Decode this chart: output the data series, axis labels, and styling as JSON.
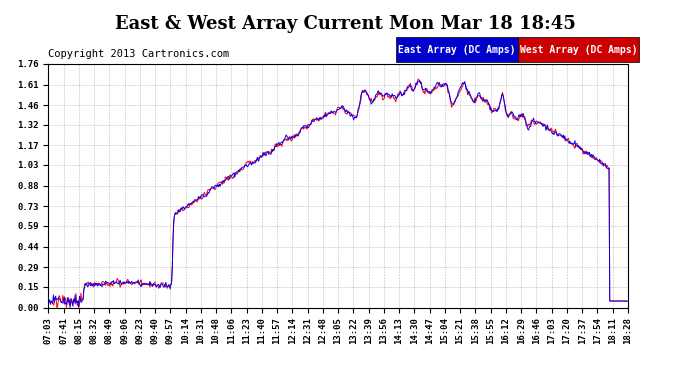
{
  "title": "East & West Array Current Mon Mar 18 18:45",
  "copyright": "Copyright 2013 Cartronics.com",
  "legend_east": "East Array (DC Amps)",
  "legend_west": "West Array (DC Amps)",
  "east_color": "#0000ff",
  "west_color": "#ff0000",
  "legend_east_bg": "#0000cc",
  "legend_west_bg": "#cc0000",
  "background_color": "#ffffff",
  "grid_color": "#aaaaaa",
  "ylim": [
    0.0,
    1.76
  ],
  "yticks": [
    0.0,
    0.15,
    0.29,
    0.44,
    0.59,
    0.73,
    0.88,
    1.03,
    1.17,
    1.32,
    1.46,
    1.61,
    1.76
  ],
  "xtick_labels": [
    "07:03",
    "07:41",
    "08:15",
    "08:32",
    "08:49",
    "09:06",
    "09:23",
    "09:40",
    "09:57",
    "10:14",
    "10:31",
    "10:48",
    "11:06",
    "11:23",
    "11:40",
    "11:57",
    "12:14",
    "12:31",
    "12:48",
    "13:05",
    "13:22",
    "13:39",
    "13:56",
    "14:13",
    "14:30",
    "14:47",
    "15:04",
    "15:21",
    "15:38",
    "15:55",
    "16:12",
    "16:29",
    "16:46",
    "17:03",
    "17:20",
    "17:37",
    "17:54",
    "18:11",
    "18:28"
  ],
  "title_fontsize": 13,
  "tick_fontsize": 6.5,
  "copyright_fontsize": 7.5,
  "legend_fontsize": 7,
  "linewidth": 0.7
}
